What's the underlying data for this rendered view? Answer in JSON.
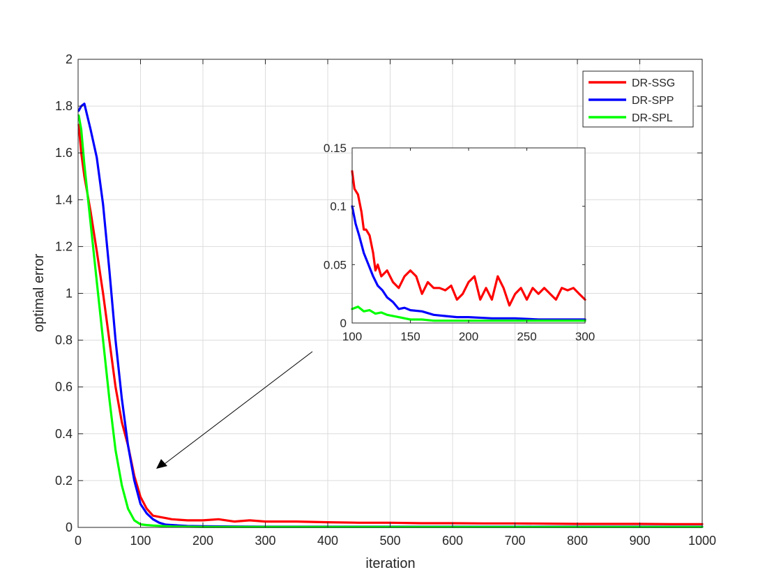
{
  "chart_data": {
    "type": "line",
    "xlabel": "iteration",
    "ylabel": "optimal error",
    "xlim": [
      0,
      1000
    ],
    "ylim": [
      0,
      2
    ],
    "xticks": [
      0,
      100,
      200,
      300,
      400,
      500,
      600,
      700,
      800,
      900,
      1000
    ],
    "yticks": [
      0,
      0.2,
      0.4,
      0.6,
      0.8,
      1,
      1.2,
      1.4,
      1.6,
      1.8,
      2
    ],
    "grid": true,
    "legend_position": "top-right",
    "series": [
      {
        "name": "DR-SSG",
        "color": "#ff0000",
        "x": [
          1,
          5,
          10,
          20,
          30,
          40,
          50,
          60,
          70,
          80,
          90,
          100,
          110,
          120,
          130,
          140,
          150,
          175,
          200,
          225,
          250,
          275,
          300,
          350,
          400,
          450,
          500,
          550,
          600,
          650,
          700,
          750,
          800,
          850,
          900,
          950,
          1000
        ],
        "y": [
          1.72,
          1.6,
          1.5,
          1.35,
          1.18,
          1.0,
          0.8,
          0.6,
          0.45,
          0.35,
          0.22,
          0.13,
          0.08,
          0.05,
          0.045,
          0.04,
          0.035,
          0.03,
          0.03,
          0.035,
          0.025,
          0.03,
          0.025,
          0.025,
          0.022,
          0.02,
          0.02,
          0.018,
          0.018,
          0.017,
          0.017,
          0.016,
          0.015,
          0.015,
          0.015,
          0.014,
          0.014
        ]
      },
      {
        "name": "DR-SPP",
        "color": "#0000ff",
        "x": [
          1,
          5,
          10,
          20,
          30,
          40,
          50,
          60,
          70,
          80,
          90,
          100,
          110,
          120,
          130,
          140,
          150,
          175,
          200,
          250,
          300,
          400,
          500,
          600,
          700,
          800,
          900,
          1000
        ],
        "y": [
          1.78,
          1.8,
          1.81,
          1.7,
          1.58,
          1.38,
          1.1,
          0.8,
          0.55,
          0.35,
          0.2,
          0.1,
          0.06,
          0.035,
          0.02,
          0.012,
          0.01,
          0.006,
          0.005,
          0.004,
          0.003,
          0.003,
          0.003,
          0.003,
          0.003,
          0.003,
          0.003,
          0.003
        ]
      },
      {
        "name": "DR-SPL",
        "color": "#00ff00",
        "x": [
          1,
          5,
          10,
          20,
          30,
          40,
          50,
          60,
          70,
          80,
          90,
          100,
          110,
          120,
          150,
          200,
          300,
          400,
          500,
          600,
          700,
          800,
          900,
          1000
        ],
        "y": [
          1.76,
          1.7,
          1.55,
          1.3,
          1.05,
          0.8,
          0.55,
          0.33,
          0.18,
          0.08,
          0.03,
          0.013,
          0.01,
          0.008,
          0.004,
          0.002,
          0.002,
          0.002,
          0.002,
          0.002,
          0.002,
          0.002,
          0.002,
          0.002
        ]
      }
    ],
    "inset": {
      "xlim": [
        100,
        300
      ],
      "ylim": [
        0,
        0.15
      ],
      "xticks": [
        100,
        150,
        200,
        250,
        300
      ],
      "yticks": [
        0,
        0.05,
        0.1,
        0.15
      ],
      "grid": false,
      "series": [
        {
          "name": "DR-SSG",
          "color": "#ff0000",
          "x": [
            100,
            102,
            105,
            108,
            110,
            112,
            115,
            118,
            120,
            122,
            125,
            130,
            135,
            140,
            145,
            150,
            155,
            160,
            165,
            170,
            175,
            180,
            185,
            190,
            195,
            200,
            205,
            210,
            215,
            220,
            225,
            230,
            235,
            240,
            245,
            250,
            255,
            260,
            265,
            270,
            275,
            280,
            285,
            290,
            295,
            300
          ],
          "y": [
            0.13,
            0.115,
            0.11,
            0.095,
            0.08,
            0.08,
            0.075,
            0.06,
            0.045,
            0.05,
            0.04,
            0.045,
            0.035,
            0.03,
            0.04,
            0.045,
            0.04,
            0.025,
            0.035,
            0.03,
            0.03,
            0.028,
            0.032,
            0.02,
            0.025,
            0.035,
            0.04,
            0.02,
            0.03,
            0.02,
            0.04,
            0.03,
            0.015,
            0.025,
            0.03,
            0.02,
            0.03,
            0.025,
            0.03,
            0.025,
            0.02,
            0.03,
            0.028,
            0.03,
            0.025,
            0.02
          ]
        },
        {
          "name": "DR-SPP",
          "color": "#0000ff",
          "x": [
            100,
            103,
            106,
            110,
            114,
            118,
            122,
            126,
            130,
            135,
            140,
            145,
            150,
            160,
            170,
            180,
            190,
            200,
            220,
            240,
            260,
            280,
            300
          ],
          "y": [
            0.1,
            0.085,
            0.075,
            0.06,
            0.05,
            0.04,
            0.032,
            0.028,
            0.022,
            0.018,
            0.012,
            0.013,
            0.011,
            0.01,
            0.007,
            0.006,
            0.005,
            0.005,
            0.004,
            0.004,
            0.003,
            0.003,
            0.003
          ]
        },
        {
          "name": "DR-SPL",
          "color": "#00ff00",
          "x": [
            100,
            105,
            110,
            115,
            120,
            125,
            130,
            140,
            150,
            160,
            170,
            180,
            200,
            220,
            250,
            280,
            300
          ],
          "y": [
            0.012,
            0.014,
            0.01,
            0.011,
            0.008,
            0.009,
            0.007,
            0.005,
            0.003,
            0.003,
            0.002,
            0.002,
            0.002,
            0.002,
            0.002,
            0.002,
            0.002
          ]
        }
      ]
    }
  }
}
